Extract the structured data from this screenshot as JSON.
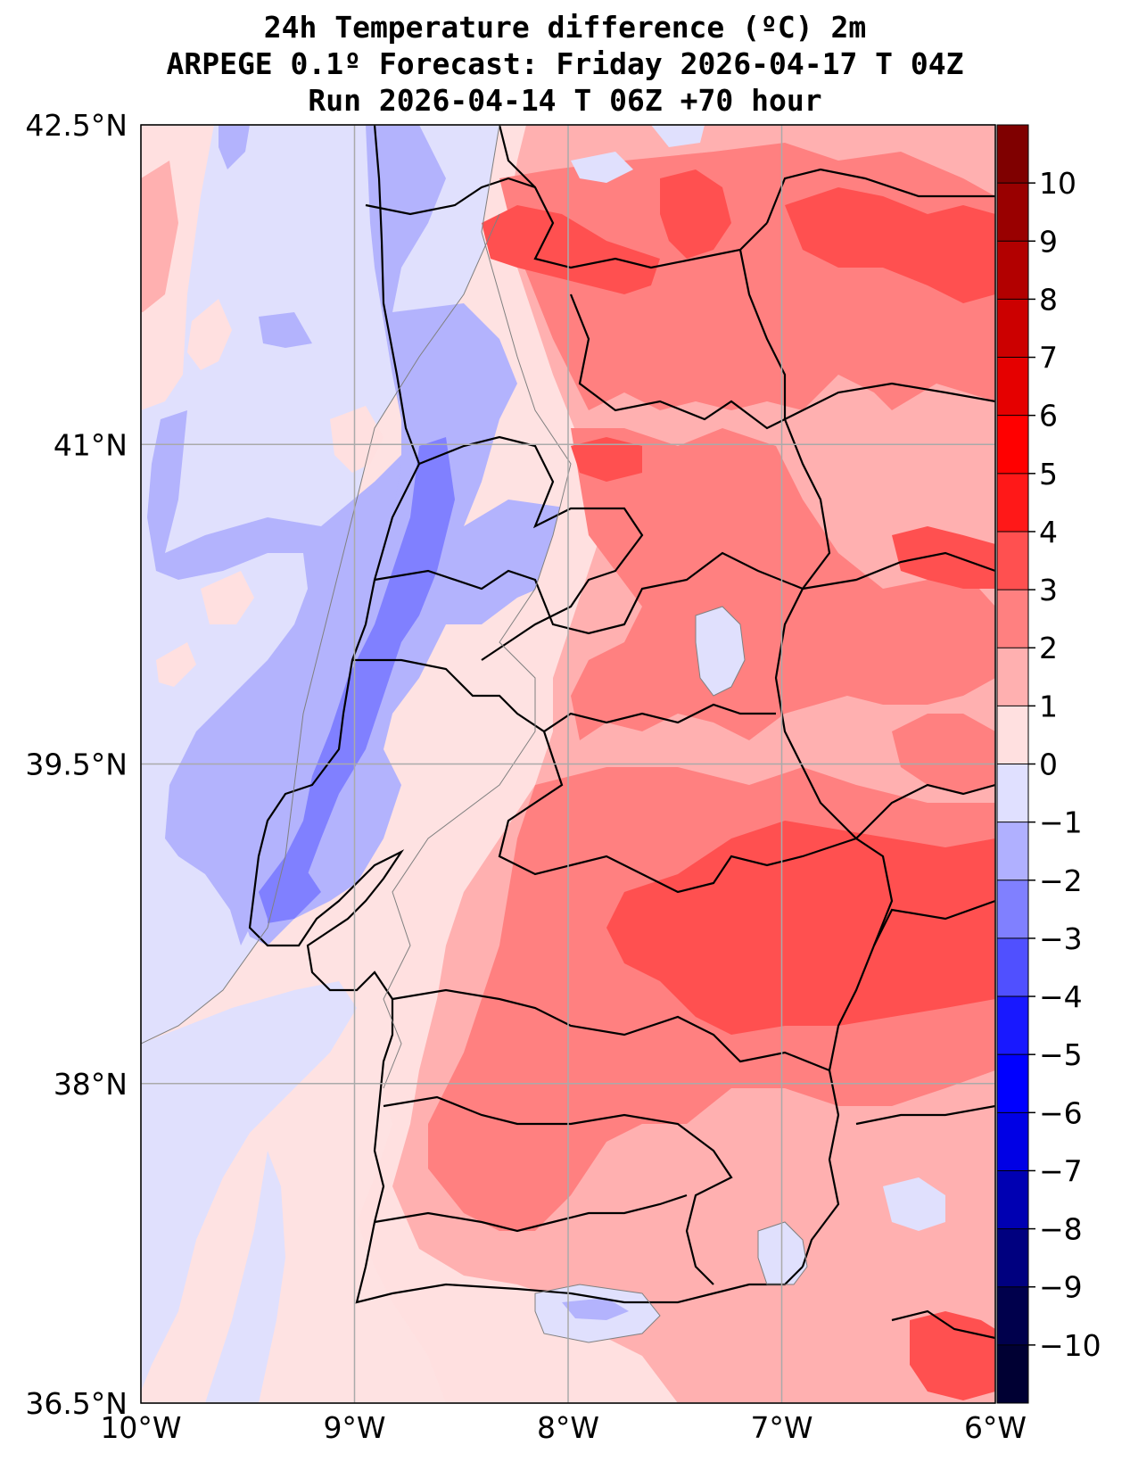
{
  "title": {
    "line1": "24h Temperature difference (ºC) 2m",
    "line2": "ARPEGE 0.1º Forecast: Friday 2026-04-17 T 04Z",
    "line3": "Run 2026-04-14 T 06Z +70 hour"
  },
  "map": {
    "extent": {
      "lon_min": -10,
      "lon_max": -6,
      "lat_min": 36.5,
      "lat_max": 42.5
    },
    "lon_ticks": [
      {
        "value": -10,
        "label": "10°W"
      },
      {
        "value": -9,
        "label": "9°W"
      },
      {
        "value": -8,
        "label": "8°W"
      },
      {
        "value": -7,
        "label": "7°W"
      },
      {
        "value": -6,
        "label": "6°W"
      }
    ],
    "lat_ticks": [
      {
        "value": 42.5,
        "label": "42.5°N"
      },
      {
        "value": 41,
        "label": "41°N"
      },
      {
        "value": 39.5,
        "label": "39.5°N"
      },
      {
        "value": 38,
        "label": "38°N"
      },
      {
        "value": 36.5,
        "label": "36.5°N"
      }
    ],
    "ocean_color": "#e0e0fd",
    "background_color": "#fee2e2"
  },
  "colorbar": {
    "levels": [
      {
        "value": 10,
        "label": "10"
      },
      {
        "value": 9,
        "label": "9"
      },
      {
        "value": 8,
        "label": "8"
      },
      {
        "value": 7,
        "label": "7"
      },
      {
        "value": 6,
        "label": "6"
      },
      {
        "value": 5,
        "label": "5"
      },
      {
        "value": 4,
        "label": "4"
      },
      {
        "value": 3,
        "label": "3"
      },
      {
        "value": 2,
        "label": "2"
      },
      {
        "value": 1,
        "label": "1"
      },
      {
        "value": 0,
        "label": "0"
      },
      {
        "value": -1,
        "label": "−1"
      },
      {
        "value": -2,
        "label": "−2"
      },
      {
        "value": -3,
        "label": "−3"
      },
      {
        "value": -4,
        "label": "−4"
      },
      {
        "value": -5,
        "label": "−5"
      },
      {
        "value": -6,
        "label": "−6"
      },
      {
        "value": -7,
        "label": "−7"
      },
      {
        "value": -8,
        "label": "−8"
      },
      {
        "value": -9,
        "label": "−9"
      },
      {
        "value": -10,
        "label": "−10"
      }
    ],
    "bands_top_to_bottom": [
      "#7f0000",
      "#990000",
      "#b20000",
      "#cc0000",
      "#e50000",
      "#ff0000",
      "#ff1818",
      "#ff5050",
      "#ff8080",
      "#ffb0b0",
      "#ffe0e0",
      "#e0e0ff",
      "#b0b0ff",
      "#8080ff",
      "#5050ff",
      "#1818ff",
      "#0000ff",
      "#0000e5",
      "#0000b2",
      "#00007f",
      "#00004c",
      "#000033"
    ]
  }
}
